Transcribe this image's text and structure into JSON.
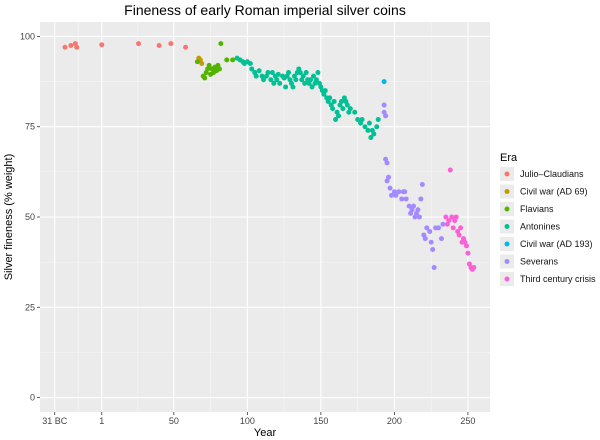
{
  "chart_data": {
    "type": "scatter",
    "title": "Fineness of early Roman imperial silver coins",
    "xlabel": "Year",
    "ylabel": "Silver fineness (% weight)",
    "xlim": [
      -41,
      265
    ],
    "ylim": [
      -4,
      104
    ],
    "x_ticks": [
      {
        "value": -31,
        "label": "31 BC"
      },
      {
        "value": 1,
        "label": "1"
      },
      {
        "value": 50,
        "label": "50"
      },
      {
        "value": 100,
        "label": "100"
      },
      {
        "value": 150,
        "label": "150"
      },
      {
        "value": 200,
        "label": "200"
      },
      {
        "value": 250,
        "label": "250"
      }
    ],
    "y_ticks": [
      0,
      25,
      50,
      75,
      100
    ],
    "grid": true,
    "legend": {
      "title": "Era",
      "position": "right"
    },
    "series": [
      {
        "name": "Julio–Claudians",
        "color": "#F8766D",
        "points": [
          [
            -24,
            97
          ],
          [
            -20,
            97.5
          ],
          [
            -17,
            98
          ],
          [
            -16,
            97
          ],
          [
            1,
            97.7
          ],
          [
            26,
            98
          ],
          [
            40,
            97.5
          ],
          [
            48,
            98
          ],
          [
            58,
            97
          ]
        ]
      },
      {
        "name": "Civil war (AD 69)",
        "color": "#C49A00",
        "points": [
          [
            67,
            94
          ],
          [
            68,
            93.5
          ],
          [
            69,
            92.5
          ]
        ]
      },
      {
        "name": "Flavians",
        "color": "#53B400",
        "points": [
          [
            66,
            93
          ],
          [
            70,
            89
          ],
          [
            71,
            88.5
          ],
          [
            72,
            90
          ],
          [
            73,
            91
          ],
          [
            74,
            92
          ],
          [
            75,
            89.5
          ],
          [
            76,
            91
          ],
          [
            77,
            90
          ],
          [
            78,
            91.5
          ],
          [
            79,
            90.5
          ],
          [
            80,
            92
          ],
          [
            81,
            91
          ],
          [
            82,
            98
          ],
          [
            86,
            93.5
          ],
          [
            90,
            93.5
          ]
        ]
      },
      {
        "name": "Antonines",
        "color": "#00C094",
        "points": [
          [
            93,
            94
          ],
          [
            95,
            93.5
          ],
          [
            97,
            93
          ],
          [
            98,
            92.5
          ],
          [
            100,
            93
          ],
          [
            102,
            92.5
          ],
          [
            103,
            91
          ],
          [
            105,
            90
          ],
          [
            106,
            89
          ],
          [
            108,
            90.5
          ],
          [
            110,
            89
          ],
          [
            111,
            88
          ],
          [
            113,
            89
          ],
          [
            114,
            90
          ],
          [
            116,
            88
          ],
          [
            117,
            90
          ],
          [
            118,
            87
          ],
          [
            119,
            89
          ],
          [
            120,
            88
          ],
          [
            121,
            89.5
          ],
          [
            122,
            87
          ],
          [
            124,
            89
          ],
          [
            125,
            88.5
          ],
          [
            126,
            86
          ],
          [
            127,
            89
          ],
          [
            128,
            90
          ],
          [
            129,
            88
          ],
          [
            130,
            87
          ],
          [
            131,
            86
          ],
          [
            132,
            89
          ],
          [
            133,
            88
          ],
          [
            134,
            90
          ],
          [
            135,
            91
          ],
          [
            136,
            90
          ],
          [
            137,
            88
          ],
          [
            138,
            89
          ],
          [
            139,
            87
          ],
          [
            140,
            90
          ],
          [
            141,
            88
          ],
          [
            142,
            87
          ],
          [
            143,
            88
          ],
          [
            144,
            86
          ],
          [
            145,
            89
          ],
          [
            146,
            87
          ],
          [
            147,
            88
          ],
          [
            148,
            90
          ],
          [
            149,
            87
          ],
          [
            150,
            86
          ],
          [
            151,
            85
          ],
          [
            152,
            84
          ],
          [
            153,
            85
          ],
          [
            154,
            83
          ],
          [
            155,
            82
          ],
          [
            156,
            83
          ],
          [
            157,
            81
          ],
          [
            158,
            80
          ],
          [
            159,
            82
          ],
          [
            160,
            77
          ],
          [
            161,
            79
          ],
          [
            162,
            78
          ],
          [
            163,
            81
          ],
          [
            164,
            82
          ],
          [
            165,
            80
          ],
          [
            166,
            83
          ],
          [
            167,
            82
          ],
          [
            168,
            81
          ],
          [
            169,
            79
          ],
          [
            170,
            80
          ],
          [
            173,
            79
          ],
          [
            175,
            77
          ],
          [
            177,
            76
          ],
          [
            178,
            77
          ],
          [
            180,
            75
          ],
          [
            182,
            74
          ],
          [
            183,
            76
          ],
          [
            184,
            72
          ],
          [
            185,
            74
          ],
          [
            186,
            73
          ],
          [
            188,
            75
          ],
          [
            189,
            77
          ]
        ]
      },
      {
        "name": "Civil war (AD 193)",
        "color": "#00B6EB",
        "points": [
          [
            193,
            87.5
          ]
        ]
      },
      {
        "name": "Severans",
        "color": "#A58AFF",
        "points": [
          [
            193,
            79
          ],
          [
            194,
            78
          ],
          [
            193,
            81
          ],
          [
            194,
            66
          ],
          [
            195,
            65
          ],
          [
            195,
            60
          ],
          [
            196,
            61
          ],
          [
            197,
            58
          ],
          [
            198,
            56
          ],
          [
            200,
            57
          ],
          [
            201,
            56
          ],
          [
            203,
            57
          ],
          [
            205,
            55
          ],
          [
            206,
            57
          ],
          [
            207,
            57
          ],
          [
            208,
            55
          ],
          [
            210,
            53
          ],
          [
            211,
            51
          ],
          [
            212,
            52
          ],
          [
            213,
            53
          ],
          [
            214,
            50
          ],
          [
            215,
            51
          ],
          [
            216,
            52
          ],
          [
            217,
            50
          ],
          [
            218,
            55
          ],
          [
            219,
            59
          ],
          [
            220,
            45
          ],
          [
            221,
            44
          ],
          [
            222,
            47
          ],
          [
            224,
            46
          ],
          [
            225,
            43
          ],
          [
            226,
            41
          ],
          [
            227,
            36
          ],
          [
            228,
            47
          ],
          [
            230,
            47
          ],
          [
            232,
            44
          ],
          [
            233,
            48
          ]
        ]
      },
      {
        "name": "Third century crisis",
        "color": "#FB61D7",
        "points": [
          [
            235,
            50
          ],
          [
            236,
            48
          ],
          [
            237,
            49
          ],
          [
            238,
            63
          ],
          [
            239,
            50
          ],
          [
            240,
            47
          ],
          [
            241,
            49
          ],
          [
            242,
            50
          ],
          [
            243,
            46
          ],
          [
            244,
            45
          ],
          [
            245,
            47
          ],
          [
            246,
            43
          ],
          [
            247,
            44
          ],
          [
            248,
            43
          ],
          [
            249,
            42
          ],
          [
            250,
            40
          ],
          [
            251,
            37
          ],
          [
            252,
            36
          ],
          [
            253,
            35.5
          ],
          [
            254,
            36
          ]
        ]
      }
    ]
  }
}
